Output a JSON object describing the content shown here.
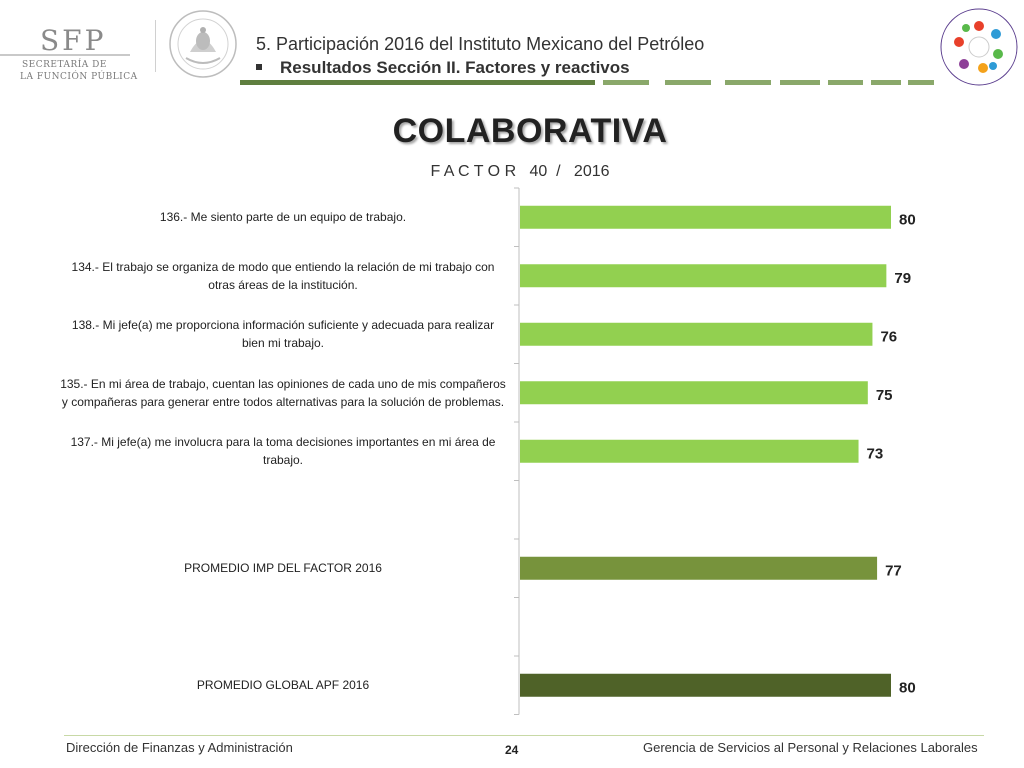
{
  "header": {
    "logo_main": "SFP",
    "logo_line1": "SECRETARÍA DE",
    "logo_line2": "LA FUNCIÓN PÚBLICA",
    "title": "5. Participación 2016 del Instituto Mexicano del Petróleo",
    "subtitle": "Resultados Sección II. Factores y reactivos"
  },
  "page": {
    "title": "COLABORATIVA",
    "subtitle": "F A C T O R   40  /   2016"
  },
  "colors": {
    "bar_light": "#92d050",
    "bar_mid": "#77933c",
    "bar_dark": "#4f6228",
    "band": "#7f9f5f",
    "footer_rule": "#c8d9a6"
  },
  "chart_data": {
    "type": "bar",
    "orientation": "horizontal",
    "categories": [
      "136.- Me siento parte de un equipo de trabajo.",
      "134.- El trabajo se organiza de modo que entiendo la relación de mi trabajo con otras áreas de la institución.",
      "138.- Mi jefe(a) me proporciona información suficiente y adecuada para realizar bien mi trabajo.",
      "135.- En mi área de trabajo, cuentan las opiniones de cada uno de mis compañeros y compañeras para generar entre todos alternativas para la solución de problemas.",
      "137.- Mi jefe(a) me involucra para la toma decisiones importantes en mi área de trabajo.",
      "",
      "PROMEDIO IMP DEL FACTOR   2016",
      "",
      "PROMEDIO GLOBAL APF   2016"
    ],
    "values": [
      80,
      79,
      76,
      75,
      73,
      null,
      77,
      null,
      80
    ],
    "data_labels": [
      "80",
      "79",
      "76",
      "75",
      "73",
      "",
      "77",
      "",
      "80"
    ],
    "bar_colors": [
      "#92d050",
      "#92d050",
      "#92d050",
      "#92d050",
      "#92d050",
      null,
      "#77933c",
      null,
      "#4f6228"
    ],
    "xlim": [
      0,
      100
    ],
    "grid": false,
    "legend": "none",
    "title": "COLABORATIVA",
    "xlabel": "",
    "ylabel": ""
  },
  "footer": {
    "left": "Dirección de Finanzas y Administración",
    "page": "24",
    "right": "Gerencia de Servicios al Personal y Relaciones Laborales"
  }
}
